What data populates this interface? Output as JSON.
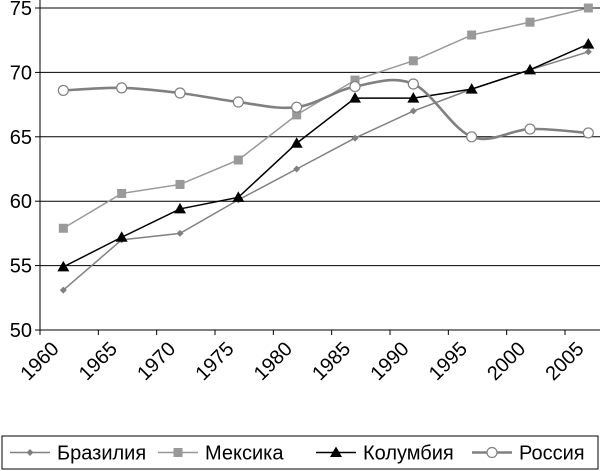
{
  "chart_data": {
    "type": "line",
    "x": [
      1962,
      1967,
      1972,
      1977,
      1982,
      1987,
      1992,
      1997,
      2002,
      2007
    ],
    "xticks": [
      "1960",
      "1965",
      "1970",
      "1975",
      "1980",
      "1985",
      "1990",
      "1995",
      "2000",
      "2005"
    ],
    "xlim": [
      1960,
      2008
    ],
    "ylim": [
      50,
      75
    ],
    "yticks": [
      "50",
      "55",
      "60",
      "65",
      "70",
      "75"
    ],
    "grid": "horizontal",
    "legend_position": "bottom",
    "series": [
      {
        "name": "Бразилия",
        "marker": "diamond",
        "color": "#808080",
        "smooth": false,
        "values": [
          53.1,
          57.0,
          57.5,
          60.1,
          62.5,
          64.9,
          67.0,
          68.7,
          70.2,
          71.6
        ]
      },
      {
        "name": "Мексика",
        "marker": "square",
        "color": "#999999",
        "smooth": false,
        "values": [
          57.9,
          60.6,
          61.3,
          63.2,
          66.7,
          69.4,
          70.9,
          72.9,
          73.9,
          75.0
        ]
      },
      {
        "name": "Колумбия",
        "marker": "triangle",
        "color": "#000000",
        "smooth": false,
        "values": [
          54.9,
          57.2,
          59.4,
          60.3,
          64.5,
          68.0,
          68.0,
          68.7,
          70.2,
          72.2
        ]
      },
      {
        "name": "Россия",
        "marker": "circle-open",
        "color": "#808080",
        "smooth": true,
        "values": [
          68.6,
          68.8,
          68.4,
          67.7,
          67.3,
          68.9,
          69.1,
          65.0,
          65.6,
          65.3
        ]
      }
    ]
  }
}
